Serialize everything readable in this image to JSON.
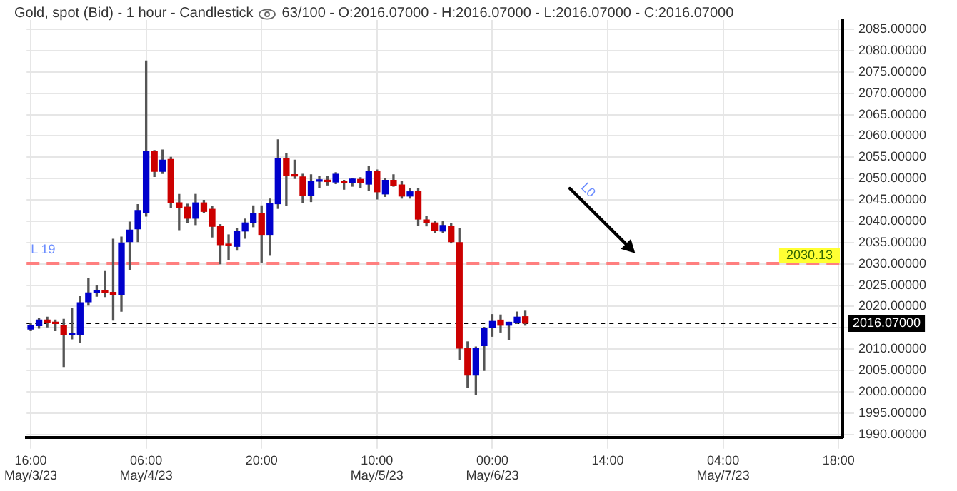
{
  "chart_data": {
    "type": "candlestick",
    "title": "Gold, spot (Bid) - 1 hour - Candlestick",
    "subtitle": "63/100 - O:2016.07000 - H:2016.07000 - L:2016.07000 - C:2016.07000",
    "categories": [
      "16:00\nMay/3/23",
      null,
      null,
      null,
      null,
      null,
      null,
      null,
      null,
      null,
      null,
      null,
      null,
      null,
      "06:00\nMay/4/23",
      null,
      null,
      null,
      null,
      null,
      null,
      null,
      null,
      null,
      null,
      null,
      null,
      null,
      "20:00",
      null,
      null,
      null,
      null,
      null,
      null,
      null,
      null,
      null,
      null,
      null,
      null,
      null,
      "10:00\nMay/5/23",
      null,
      null,
      null,
      null,
      null,
      null,
      null,
      null,
      null,
      null,
      null,
      null,
      null,
      "00:00\nMay/6/23",
      null,
      null,
      null,
      null,
      null,
      null,
      null,
      null,
      null,
      null,
      null,
      null,
      null,
      "14:00",
      null,
      null,
      null,
      null,
      null,
      null,
      null,
      null,
      null,
      null,
      null,
      null,
      null,
      "04:00\nMay/7/23",
      null,
      null,
      null,
      null,
      null,
      null,
      null,
      null,
      null,
      null,
      null,
      null,
      null,
      "18:00"
    ],
    "ohlc": [
      [
        2014.7,
        2016,
        2014.3,
        2015.5
      ],
      [
        2015.5,
        2017.2,
        2014.9,
        2016.8
      ],
      [
        2016.8,
        2017.5,
        2015.2,
        2016.3
      ],
      [
        2016.3,
        2016.8,
        2014.3,
        2016
      ],
      [
        2015.5,
        2017,
        2005.9,
        2013.5
      ],
      [
        2013.4,
        2019.6,
        2012.4,
        2013.5
      ],
      [
        2013.3,
        2022.3,
        2011.5,
        2020.9
      ],
      [
        2021.1,
        2026.5,
        2020.3,
        2023.2
      ],
      [
        2023.3,
        2024.9,
        2022.4,
        2023.8
      ],
      [
        2023.8,
        2028.2,
        2022.3,
        2023.3
      ],
      [
        2023.3,
        2035.8,
        2016.8,
        2022.7
      ],
      [
        2022.7,
        2036.3,
        2018.9,
        2034.9
      ],
      [
        2035.2,
        2039.8,
        2028.7,
        2037.9
      ],
      [
        2038.2,
        2043.9,
        2035.2,
        2042.5
      ],
      [
        2042,
        2077.6,
        2041.2,
        2056.4
      ],
      [
        2056.4,
        2056.6,
        2050.5,
        2051.7
      ],
      [
        2051.7,
        2056.7,
        2051.2,
        2054.3
      ],
      [
        2054.5,
        2055,
        2043.2,
        2044.3
      ],
      [
        2044.3,
        2046.3,
        2038,
        2043.3
      ],
      [
        2043.3,
        2044,
        2039.7,
        2040.7
      ],
      [
        2040.7,
        2046.3,
        2039.2,
        2044.3
      ],
      [
        2044.3,
        2044.9,
        2042,
        2042.3
      ],
      [
        2042.8,
        2043.5,
        2036.3,
        2038.8
      ],
      [
        2038.8,
        2039.2,
        2030,
        2034.5
      ],
      [
        2034.5,
        2036.8,
        2031,
        2034.3
      ],
      [
        2034.1,
        2038.3,
        2033.2,
        2037.6
      ],
      [
        2037.7,
        2040.5,
        2036,
        2039.6
      ],
      [
        2039.6,
        2043.6,
        2038.7,
        2041.8
      ],
      [
        2041.8,
        2043.6,
        2030.4,
        2036.9
      ],
      [
        2036.9,
        2045.2,
        2032,
        2044.1
      ],
      [
        2044.1,
        2059.1,
        2043,
        2054.8
      ],
      [
        2054.8,
        2055.9,
        2043.7,
        2050.7
      ],
      [
        2050.7,
        2054.3,
        2050,
        2050.6
      ],
      [
        2050.4,
        2051,
        2044.3,
        2046.1
      ],
      [
        2046,
        2050.9,
        2044.6,
        2049.4
      ],
      [
        2049.4,
        2050.6,
        2047.9,
        2049.6
      ],
      [
        2049.6,
        2050.5,
        2048.5,
        2049.3
      ],
      [
        2049.2,
        2051.4,
        2048.8,
        2051
      ],
      [
        2049.3,
        2049.6,
        2047.5,
        2049.1
      ],
      [
        2049,
        2050,
        2048.2,
        2049.9
      ],
      [
        2049.8,
        2050.2,
        2047.8,
        2049.1
      ],
      [
        2048.7,
        2052.8,
        2047.3,
        2051.7
      ],
      [
        2051.7,
        2052,
        2045.2,
        2046.9
      ],
      [
        2046.4,
        2050,
        2045.8,
        2049.6
      ],
      [
        2049.6,
        2050.9,
        2048.2,
        2048.4
      ],
      [
        2048.5,
        2049.4,
        2045.4,
        2045.9
      ],
      [
        2045.9,
        2047.6,
        2045.4,
        2046.9
      ],
      [
        2047,
        2047.6,
        2039,
        2040.5
      ],
      [
        2040.3,
        2041.2,
        2038.9,
        2039.6
      ],
      [
        2039.6,
        2040,
        2037.4,
        2037.8
      ],
      [
        2037.7,
        2040,
        2037.4,
        2039
      ],
      [
        2038.8,
        2039.5,
        2034.9,
        2035.2
      ],
      [
        2035,
        2038.3,
        2007.5,
        2010.2
      ],
      [
        2010.2,
        2011.7,
        2001.1,
        2003.9
      ],
      [
        2003.9,
        2010.5,
        1999.4,
        2010.2
      ],
      [
        2010.8,
        2015.1,
        2005,
        2014.8
      ],
      [
        2015.1,
        2018.1,
        2013,
        2016.5
      ],
      [
        2016.8,
        2018,
        2014,
        2015.6
      ],
      [
        2015.6,
        2016.3,
        2012.3,
        2016.3
      ],
      [
        2016.3,
        2018.7,
        2016,
        2017.5
      ],
      [
        2017.6,
        2018.9,
        2015.6,
        2016.1
      ],
      null,
      null,
      null,
      null,
      null,
      null,
      null,
      null,
      null,
      null,
      null,
      null,
      null,
      null,
      null,
      null,
      null,
      null,
      null,
      null,
      null,
      null,
      null,
      null,
      null,
      null,
      null,
      null,
      null,
      null,
      null,
      null,
      null,
      null,
      null,
      null,
      null,
      null
    ],
    "colors": [
      "#0000cc",
      "#0000cc",
      "#cc0000",
      "#cc0000",
      "#cc0000",
      "#0000cc",
      "#0000cc",
      "#0000cc",
      "#0000cc",
      "#cc0000",
      "#cc0000",
      "#0000cc",
      "#0000cc",
      "#0000cc",
      "#0000cc",
      "#cc0000",
      "#0000cc",
      "#cc0000",
      "#cc0000",
      "#cc0000",
      "#0000cc",
      "#cc0000",
      "#cc0000",
      "#cc0000",
      "#cc0000",
      "#0000cc",
      "#0000cc",
      "#0000cc",
      "#cc0000",
      "#0000cc",
      "#0000cc",
      "#cc0000",
      "#cc0000",
      "#cc0000",
      "#0000cc",
      "#0000cc",
      "#cc0000",
      "#0000cc",
      "#cc0000",
      "#0000cc",
      "#cc0000",
      "#0000cc",
      "#cc0000",
      "#0000cc",
      "#cc0000",
      "#cc0000",
      "#0000cc",
      "#cc0000",
      "#cc0000",
      "#cc0000",
      "#0000cc",
      "#cc0000",
      "#cc0000",
      "#cc0000",
      "#0000cc",
      "#0000cc",
      "#0000cc",
      "#cc0000",
      "#0000cc",
      "#0000cc",
      "#cc0000",
      null,
      null,
      null,
      null,
      null,
      null,
      null,
      null,
      null,
      null,
      null,
      null,
      null,
      null,
      null,
      null,
      null,
      null,
      null,
      null,
      null,
      null,
      null,
      null,
      null,
      null,
      null,
      null,
      null,
      null,
      null,
      null,
      null,
      null,
      null,
      null,
      null,
      null
    ],
    "ylim": [
      1989.3,
      2087.2
    ],
    "yticks": [
      {
        "value": 1990,
        "label": "1990.00000"
      },
      {
        "value": 1995,
        "label": "1995.00000"
      },
      {
        "value": 2000,
        "label": "2000.00000"
      },
      {
        "value": 2005,
        "label": "2005.00000"
      },
      {
        "value": 2010,
        "label": "2010.00000"
      },
      {
        "value": 2015,
        "label": null
      },
      {
        "value": 2020,
        "label": "2020.00000"
      },
      {
        "value": 2025,
        "label": "2025.00000"
      },
      {
        "value": 2030,
        "label": "2030.00000"
      },
      {
        "value": 2035,
        "label": "2035.00000"
      },
      {
        "value": 2040,
        "label": "2040.00000"
      },
      {
        "value": 2045,
        "label": "2045.00000"
      },
      {
        "value": 2050,
        "label": "2050.00000"
      },
      {
        "value": 2055,
        "label": "2055.00000"
      },
      {
        "value": 2060,
        "label": "2060.00000"
      },
      {
        "value": 2065,
        "label": "2065.00000"
      },
      {
        "value": 2070,
        "label": "2070.00000"
      },
      {
        "value": 2075,
        "label": "2075.00000"
      },
      {
        "value": 2080,
        "label": "2080.00000"
      },
      {
        "value": 2085,
        "label": "2085.00000"
      }
    ],
    "ref_lines": [
      {
        "axis": "y",
        "value": 2030.13,
        "label": "L 19",
        "color": "#ff7f7f",
        "line_style": "dashed"
      },
      {
        "axis": "y",
        "value": 2016.07,
        "label": "2016.07000",
        "color": "#000000",
        "line_style": "dotted"
      }
    ],
    "annotations": [
      "L0",
      {
        "text": "2030.13",
        "y": 2030.13
      }
    ],
    "grid": true,
    "legend": false
  }
}
